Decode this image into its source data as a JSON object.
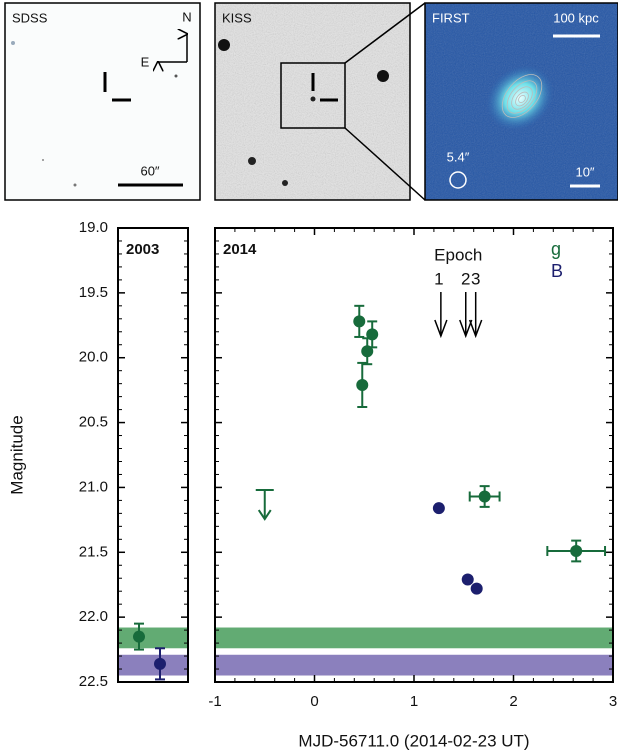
{
  "images": [
    {
      "label": "SDSS",
      "scale_label": "60″",
      "compass": [
        "N",
        "E"
      ]
    },
    {
      "label": "KISS"
    },
    {
      "label": "FIRST",
      "scale_label": "100 kpc",
      "beam_label": "5.4″",
      "scale_label_2": "10″"
    }
  ],
  "chart_data": [
    {
      "type": "scatter",
      "title": "2003",
      "y_label": "Magnitude",
      "ylim": [
        22.5,
        19.0
      ],
      "yticks": [
        {
          "value": 19,
          "label": "19.0"
        },
        {
          "value": 19.5,
          "label": "19.5"
        },
        {
          "value": 20,
          "label": "20.0"
        },
        {
          "value": 20.5,
          "label": "20.5"
        },
        {
          "value": 21,
          "label": "21.0"
        },
        {
          "value": 21.5,
          "label": "21.5"
        },
        {
          "value": 22,
          "label": "22.0"
        },
        {
          "value": 22.5,
          "label": "22.5"
        }
      ],
      "series": [
        {
          "name": "g",
          "color": "#176b3b",
          "values": [
            22.15
          ],
          "yerr": [
            0.1
          ]
        },
        {
          "name": "B",
          "color": "#1c1f6e",
          "values": [
            22.36
          ],
          "yerr": [
            0.12
          ]
        }
      ],
      "bands": [
        {
          "color": "#62ab73",
          "range": [
            22.08,
            22.24
          ]
        },
        {
          "color": "#8b80bd",
          "range": [
            22.29,
            22.45
          ]
        }
      ]
    },
    {
      "type": "scatter",
      "title": "2014",
      "x_label": "MJD-56711.0 (2014-02-23 UT)",
      "xlim": [
        -1,
        3
      ],
      "xticks": [
        -1,
        0,
        1,
        2,
        3
      ],
      "ylim": [
        22.5,
        19.0
      ],
      "series": [
        {
          "name": "g",
          "color": "#176b3b",
          "x": [
            0.45,
            0.58,
            0.53,
            0.48,
            1.71,
            2.63
          ],
          "values": [
            19.72,
            19.82,
            19.95,
            20.21,
            21.07,
            21.49
          ],
          "yerr": [
            0.12,
            0.1,
            0.1,
            0.17,
            0.08,
            0.08
          ],
          "xerr": [
            null,
            null,
            null,
            null,
            0.15,
            0.29
          ]
        },
        {
          "name": "B",
          "color": "#1c1f6e",
          "x": [
            1.25,
            1.54,
            1.63
          ],
          "values": [
            21.16,
            21.71,
            21.78
          ]
        }
      ],
      "upper_limit": {
        "color": "#176b3b",
        "x": -0.5,
        "value": 21.02
      },
      "epochs": {
        "label": "Epoch",
        "names": [
          "1",
          "2",
          "3"
        ],
        "x": [
          1.27,
          1.52,
          1.62
        ]
      },
      "bands": [
        {
          "color": "#62ab73",
          "range": [
            22.08,
            22.24
          ]
        },
        {
          "color": "#8b80bd",
          "range": [
            22.29,
            22.45
          ]
        }
      ]
    }
  ]
}
